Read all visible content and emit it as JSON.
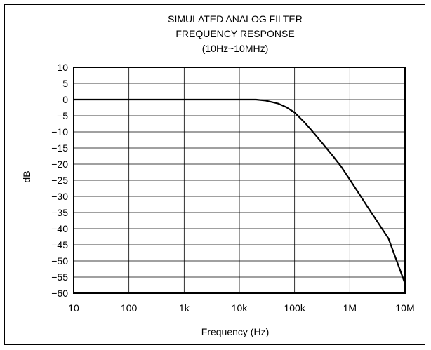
{
  "chart_data": {
    "type": "line",
    "title_lines": [
      "SIMULATED ANALOG FILTER",
      "FREQUENCY RESPONSE",
      "(10Hz~10MHz)"
    ],
    "xlabel": "Frequency (Hz)",
    "ylabel": "dB",
    "x_scale": "log",
    "xlim": [
      10,
      10000000
    ],
    "ylim": [
      -60,
      10
    ],
    "x_ticks": [
      10,
      100,
      1000,
      10000,
      100000,
      1000000,
      10000000
    ],
    "x_tick_labels": [
      "10",
      "100",
      "1k",
      "10k",
      "100k",
      "1M",
      "10M"
    ],
    "y_ticks": [
      10,
      5,
      0,
      -5,
      -10,
      -15,
      -20,
      -25,
      -30,
      -35,
      -40,
      -45,
      -50,
      -55,
      -60
    ],
    "y_tick_labels": [
      "10",
      "5",
      "0",
      "−5",
      "−10",
      "−15",
      "−20",
      "−25",
      "−30",
      "−35",
      "−40",
      "−45",
      "−50",
      "−55",
      "−60"
    ],
    "grid": true,
    "series": [
      {
        "color": "#000000",
        "x": [
          10,
          100,
          1000,
          10000,
          20000,
          30000,
          50000,
          70000,
          100000,
          150000,
          200000,
          300000,
          500000,
          700000,
          1000000,
          2000000,
          5000000,
          10000000
        ],
        "y": [
          0,
          0,
          0,
          0,
          0,
          -0.3,
          -1.2,
          -2.3,
          -4.0,
          -7.0,
          -9.4,
          -13.0,
          -17.6,
          -20.8,
          -24.8,
          -32.7,
          -43.0,
          -57.0
        ]
      }
    ]
  },
  "colors": {
    "line": "#000000",
    "grid": "#000000",
    "background": "#ffffff"
  }
}
